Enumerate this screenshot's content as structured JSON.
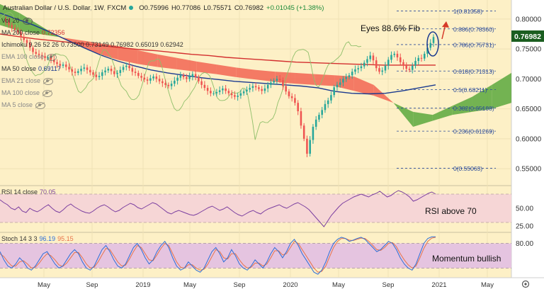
{
  "header": {
    "symbol": "Australian Dollar / U.S. Dollar",
    "timeframe": "1W",
    "exchange": "FXCM",
    "open": "O0.75996",
    "high": "H0.77086",
    "low": "L0.75571",
    "close": "C0.76982",
    "change": "+0.01045 (+1.38%)"
  },
  "legend": {
    "vol": "Vol",
    "vol_val": "20",
    "ma200": "MA 200 close",
    "ma200_val": "0.72356",
    "ichimoku": "Ichimoku 9 26 52 26",
    "ichimoku_vals": "0.73500  0.73149  0.76982  0.65019  0.62942",
    "ema100": "EMA 100 close",
    "ma50": "MA 50 close",
    "ma50_val": "0.69117",
    "ema21": "EMA 21 close",
    "ma100": "MA 100 close",
    "ma5": "MA 5 close"
  },
  "annotations": {
    "eyes": "Eyes 88.6% Fib",
    "rsi_note": "RSI above 70",
    "momentum": "Momentum bullish"
  },
  "rsi_label": "RSI 14 close",
  "rsi_value": "70.05",
  "stoch_label": "Stoch 14 3 3",
  "stoch_k": "96.19",
  "stoch_d": "95.15",
  "current_price": "0.76982",
  "colors": {
    "background": "#fdf0c6",
    "candle_up": "#26a69a",
    "candle_down": "#ef5350",
    "ma200": "#d32f2f",
    "ma50": "#1a3a8f",
    "cloud_bull": "#5aa83d",
    "cloud_bear": "#f26552",
    "rsi_line": "#7b3fa0",
    "rsi_band": "#f6d6d6",
    "stoch_band": "#e5c4e0",
    "stoch_k": "#2e6fd8",
    "stoch_d": "#e8734a",
    "fib": "#2a4a9a",
    "price_tag": "#1b5e20"
  },
  "chart_data": [
    {
      "type": "candlestick",
      "x_ticks": [
        "May",
        "Sep",
        "2019",
        "May",
        "Sep",
        "2020",
        "May",
        "Sep",
        "2021",
        "May"
      ],
      "y_ticks": [
        0.55,
        0.6,
        0.65,
        0.7,
        0.75,
        0.8
      ],
      "ylim": [
        0.53,
        0.82
      ],
      "fib_levels": [
        {
          "label": "1(0.81358)",
          "value": 0.81358
        },
        {
          "label": "0.886(0.78360)",
          "value": 0.7836
        },
        {
          "label": "0.786(0.75731)",
          "value": 0.75731
        },
        {
          "label": "0.618(0.71313)",
          "value": 0.71313
        },
        {
          "label": "0.5(0.68211)",
          "value": 0.68211
        },
        {
          "label": "0.382(0.65108)",
          "value": 0.65108
        },
        {
          "label": "0.236(0.61269)",
          "value": 0.61269
        },
        {
          "label": "0(0.55063)",
          "value": 0.55063
        }
      ],
      "close_series": [
        0.8,
        0.795,
        0.79,
        0.785,
        0.782,
        0.778,
        0.77,
        0.765,
        0.76,
        0.752,
        0.745,
        0.742,
        0.74,
        0.738,
        0.735,
        0.736,
        0.732,
        0.728,
        0.725,
        0.722,
        0.724,
        0.72,
        0.716,
        0.712,
        0.71,
        0.713,
        0.717,
        0.719,
        0.715,
        0.711,
        0.707,
        0.703,
        0.705,
        0.711,
        0.714,
        0.717,
        0.713,
        0.708,
        0.71,
        0.715,
        0.72,
        0.722,
        0.718,
        0.712,
        0.71,
        0.705,
        0.702,
        0.699,
        0.697,
        0.701,
        0.704,
        0.7,
        0.696,
        0.693,
        0.69,
        0.688,
        0.692,
        0.697,
        0.702,
        0.706,
        0.703,
        0.7,
        0.704,
        0.708,
        0.703,
        0.696,
        0.69,
        0.685,
        0.68,
        0.676,
        0.676,
        0.678,
        0.681,
        0.684,
        0.68,
        0.676,
        0.673,
        0.67,
        0.672,
        0.676,
        0.679,
        0.682,
        0.685,
        0.688,
        0.686,
        0.683,
        0.68,
        0.684,
        0.69,
        0.694,
        0.697,
        0.7,
        0.698,
        0.688,
        0.679,
        0.671,
        0.668,
        0.66,
        0.646,
        0.622,
        0.6,
        0.575,
        0.598,
        0.62,
        0.632,
        0.64,
        0.648,
        0.658,
        0.664,
        0.673,
        0.686,
        0.69,
        0.694,
        0.7,
        0.703,
        0.706,
        0.712,
        0.716,
        0.718,
        0.721,
        0.727,
        0.733,
        0.739,
        0.731,
        0.718,
        0.712,
        0.714,
        0.722,
        0.732,
        0.74,
        0.742,
        0.736,
        0.728,
        0.722,
        0.717,
        0.715,
        0.722,
        0.73,
        0.735,
        0.734,
        0.742,
        0.752,
        0.76,
        0.77
      ],
      "ma200_series": [
        0.775,
        0.771,
        0.767,
        0.764,
        0.761,
        0.758,
        0.755,
        0.752,
        0.749,
        0.747,
        0.744,
        0.741,
        0.739,
        0.736,
        0.734,
        0.732,
        0.73,
        0.728,
        0.727,
        0.726,
        0.725,
        0.724,
        0.723,
        0.723,
        0.723,
        0.723
      ],
      "ma50_series": [
        0.81,
        0.8,
        0.79,
        0.778,
        0.765,
        0.752,
        0.74,
        0.73,
        0.722,
        0.715,
        0.71,
        0.706,
        0.702,
        0.699,
        0.696,
        0.694,
        0.692,
        0.69,
        0.688,
        0.685,
        0.679,
        0.676,
        0.675,
        0.676,
        0.68,
        0.685,
        0.69
      ],
      "cloud_a": [
        0.825,
        0.81,
        0.79,
        0.77,
        0.755,
        0.742,
        0.732,
        0.725,
        0.72,
        0.716,
        0.712,
        0.708,
        0.703,
        0.699,
        0.695,
        0.692,
        0.69,
        0.688,
        0.68,
        0.672,
        0.66,
        0.645,
        0.64,
        0.655,
        0.67,
        0.69,
        0.71
      ],
      "cloud_b": [
        0.79,
        0.78,
        0.775,
        0.77,
        0.765,
        0.76,
        0.755,
        0.748,
        0.741,
        0.735,
        0.729,
        0.724,
        0.719,
        0.715,
        0.712,
        0.71,
        0.708,
        0.706,
        0.704,
        0.69,
        0.66,
        0.62,
        0.63,
        0.64,
        0.645,
        0.65,
        0.66
      ]
    },
    {
      "type": "line",
      "name_label": "RSI 14 close",
      "y_ticks": [
        25.0,
        50.0
      ],
      "band": [
        30,
        70
      ],
      "ylim": [
        18,
        80
      ],
      "values": [
        62,
        58,
        55,
        50,
        48,
        52,
        46,
        44,
        50,
        47,
        45,
        48,
        52,
        55,
        50,
        46,
        44,
        48,
        53,
        56,
        52,
        49,
        46,
        44,
        43,
        46,
        50,
        53,
        55,
        52,
        48,
        45,
        47,
        51,
        54,
        57,
        55,
        51,
        49,
        52,
        55,
        58,
        56,
        52,
        48,
        44,
        42,
        45,
        47,
        45,
        43,
        41,
        40,
        42,
        45,
        48,
        51,
        53,
        50,
        47,
        49,
        52,
        48,
        44,
        41,
        39,
        42,
        45,
        47,
        44,
        42,
        46,
        49,
        51,
        53,
        55,
        52,
        50,
        53,
        56,
        58,
        55,
        52,
        48,
        42,
        36,
        30,
        24,
        32,
        40,
        46,
        52,
        57,
        60,
        63,
        66,
        68,
        70,
        68,
        66,
        69,
        71,
        74,
        70,
        66,
        68,
        72,
        75,
        73,
        70,
        66,
        60,
        62,
        65,
        68,
        71,
        73,
        70
      ]
    },
    {
      "type": "line",
      "name_label": "Stoch 14 3 3",
      "y_ticks": [
        80.0
      ],
      "band": [
        20,
        80
      ],
      "ylim": [
        0,
        100
      ],
      "k": [
        60,
        40,
        25,
        20,
        30,
        45,
        35,
        20,
        15,
        25,
        40,
        55,
        60,
        45,
        30,
        20,
        25,
        40,
        55,
        65,
        55,
        35,
        20,
        15,
        25,
        45,
        65,
        75,
        60,
        40,
        25,
        20,
        30,
        50,
        70,
        80,
        65,
        45,
        30,
        40,
        60,
        75,
        85,
        70,
        45,
        25,
        15,
        20,
        35,
        25,
        15,
        10,
        20,
        40,
        60,
        70,
        55,
        35,
        45,
        65,
        50,
        30,
        20,
        15,
        25,
        40,
        30,
        20,
        35,
        55,
        70,
        60,
        45,
        60,
        80,
        90,
        75,
        55,
        40,
        25,
        10,
        5,
        15,
        35,
        60,
        80,
        90,
        95,
        92,
        85,
        88,
        92,
        95,
        90,
        80,
        70,
        60,
        65,
        75,
        85,
        80,
        65,
        45,
        30,
        20,
        15,
        30,
        55,
        80,
        92,
        96,
        96
      ],
      "d": [
        55,
        48,
        35,
        25,
        25,
        35,
        38,
        30,
        20,
        22,
        32,
        45,
        55,
        50,
        40,
        28,
        24,
        32,
        45,
        58,
        58,
        45,
        30,
        20,
        22,
        35,
        52,
        68,
        65,
        50,
        35,
        25,
        27,
        42,
        60,
        75,
        70,
        55,
        40,
        38,
        52,
        68,
        80,
        75,
        55,
        35,
        22,
        20,
        28,
        28,
        20,
        15,
        17,
        30,
        48,
        65,
        60,
        45,
        42,
        55,
        55,
        40,
        28,
        20,
        22,
        32,
        32,
        25,
        30,
        45,
        62,
        62,
        52,
        55,
        70,
        85,
        80,
        65,
        50,
        35,
        20,
        10,
        12,
        25,
        48,
        70,
        85,
        92,
        92,
        88,
        87,
        90,
        93,
        92,
        85,
        75,
        65,
        63,
        70,
        80,
        82,
        72,
        55,
        40,
        28,
        20,
        25,
        45,
        68,
        85,
        93,
        95
      ]
    }
  ]
}
